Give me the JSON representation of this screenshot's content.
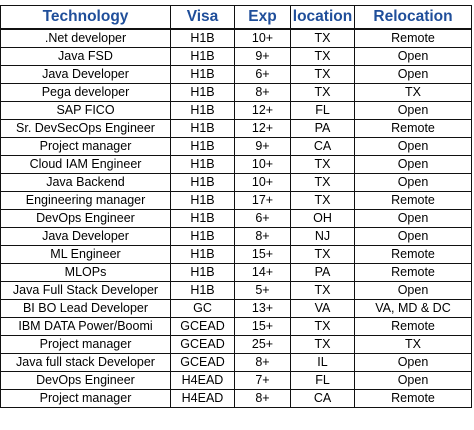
{
  "table": {
    "header_color": "#1f4e9a",
    "headers": [
      "Technology",
      "Visa",
      "Exp",
      "location",
      "Relocation"
    ],
    "rows": [
      [
        ".Net developer",
        "H1B",
        "10+",
        "TX",
        "Remote"
      ],
      [
        "Java FSD",
        "H1B",
        "9+",
        "TX",
        "Open"
      ],
      [
        "Java Developer",
        "H1B",
        "6+",
        "TX",
        "Open"
      ],
      [
        "Pega developer",
        "H1B",
        "8+",
        "TX",
        "TX"
      ],
      [
        "SAP FICO",
        "H1B",
        "12+",
        "FL",
        "Open"
      ],
      [
        "Sr. DevSecOps Engineer",
        "H1B",
        "12+",
        "PA",
        "Remote"
      ],
      [
        "Project manager",
        "H1B",
        "9+",
        "CA",
        "Open"
      ],
      [
        "Cloud IAM Engineer",
        "H1B",
        "10+",
        "TX",
        "Open"
      ],
      [
        "Java Backend",
        "H1B",
        "10+",
        "TX",
        "Open"
      ],
      [
        "Engineering manager",
        "H1B",
        "17+",
        "TX",
        "Remote"
      ],
      [
        "DevOps Engineer",
        "H1B",
        "6+",
        "OH",
        "Open"
      ],
      [
        "Java Developer",
        "H1B",
        "8+",
        "NJ",
        "Open"
      ],
      [
        "ML Engineer",
        "H1B",
        "15+",
        "TX",
        "Remote"
      ],
      [
        "MLOPs",
        "H1B",
        "14+",
        "PA",
        "Remote"
      ],
      [
        "Java Full Stack Developer",
        "H1B",
        "5+",
        "TX",
        "Open"
      ],
      [
        "BI BO Lead Developer",
        "GC",
        "13+",
        "VA",
        "VA, MD & DC"
      ],
      [
        "IBM DATA Power/Boomi",
        "GCEAD",
        "15+",
        "TX",
        "Remote"
      ],
      [
        "Project manager",
        "GCEAD",
        "25+",
        "TX",
        "TX"
      ],
      [
        "Java full stack Developer",
        "GCEAD",
        "8+",
        "IL",
        "Open"
      ],
      [
        "DevOps Engineer",
        "H4EAD",
        "7+",
        "FL",
        "Open"
      ],
      [
        "Project manager",
        "H4EAD",
        "8+",
        "CA",
        "Remote"
      ]
    ]
  }
}
